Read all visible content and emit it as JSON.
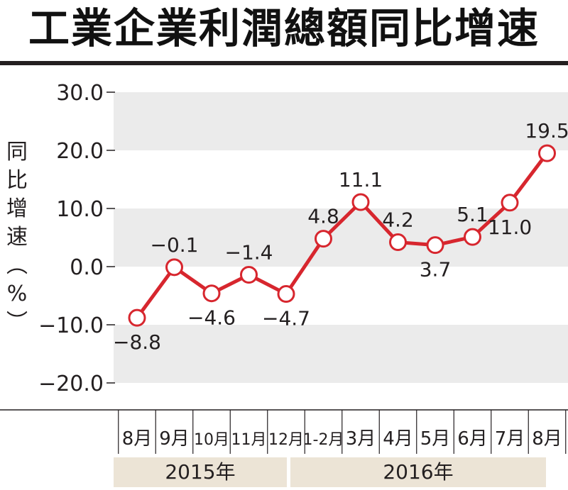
{
  "title": "工業企業利潤總額同比增速",
  "chart_data": {
    "type": "line",
    "title": "工業企業利潤總額同比增速",
    "ylabel": "同比增速（%）",
    "xlabel": "",
    "ylim": [
      -20,
      30
    ],
    "yticks": [
      "30.0",
      "20.0",
      "10.0",
      "0.0",
      "−10.0",
      "−20.0"
    ],
    "categories": [
      "8月",
      "9月",
      "10月",
      "11月",
      "12月",
      "1-2月",
      "3月",
      "4月",
      "5月",
      "6月",
      "7月",
      "8月"
    ],
    "values": [
      -8.8,
      -0.1,
      -4.6,
      -1.4,
      -4.7,
      4.8,
      11.1,
      4.2,
      3.7,
      5.1,
      11.0,
      19.5
    ],
    "data_labels": [
      "−8.8",
      "−0.1",
      "−4.6",
      "−1.4",
      "−4.7",
      "4.8",
      "11.1",
      "4.2",
      "3.7",
      "5.1",
      "11.0",
      "19.5"
    ],
    "years": [
      {
        "label": "2015年",
        "count": 5
      },
      {
        "label": "2016年",
        "count": 7
      }
    ],
    "line_color": "#d7262e",
    "band_color": "#ebebeb",
    "footer_color": "#ece4d6",
    "grid": "alternating bands"
  }
}
